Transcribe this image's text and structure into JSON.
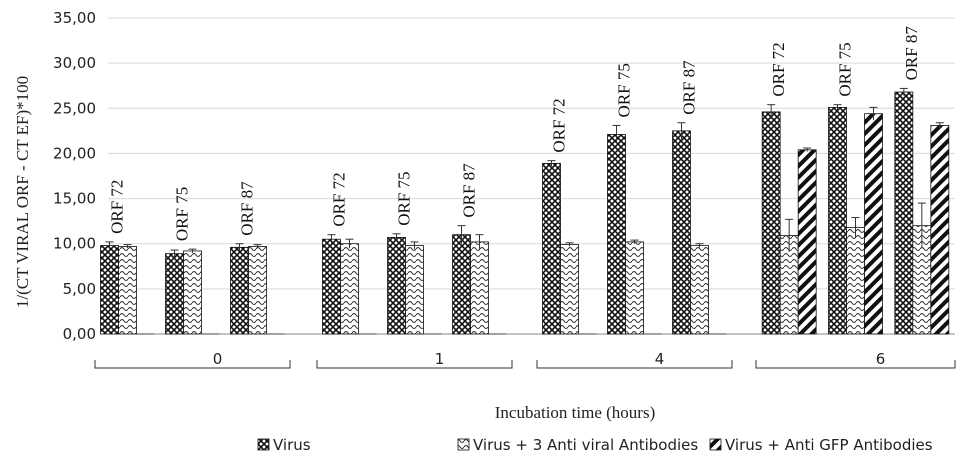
{
  "chart_data": {
    "type": "bar",
    "ylabel": "1/(CT VIRAL ORF - CT EF)*100",
    "xlabel": "Incubation time (hours)",
    "ylim": [
      0,
      35
    ],
    "y_ticks": [
      "0,00",
      "5,00",
      "10,00",
      "15,00",
      "20,00",
      "25,00",
      "30,00",
      "35,00"
    ],
    "grid": true,
    "legend_position": "bottom",
    "groups": [
      "0",
      "1",
      "4",
      "6"
    ],
    "subcategories": [
      "ORF 72",
      "ORF 75",
      "ORF 87"
    ],
    "series": [
      {
        "name": "Virus",
        "pattern": "crosshatch",
        "values": [
          [
            9.8,
            8.9,
            9.6
          ],
          [
            10.5,
            10.7,
            11.0
          ],
          [
            18.9,
            22.1,
            22.5
          ],
          [
            24.6,
            25.1,
            26.8
          ]
        ],
        "errors": [
          [
            0.4,
            0.4,
            0.4
          ],
          [
            0.5,
            0.4,
            1.0
          ],
          [
            0.3,
            1.0,
            0.9
          ],
          [
            0.8,
            0.3,
            0.4
          ]
        ]
      },
      {
        "name": "Virus + 3 Anti viral Antibodies",
        "pattern": "wave",
        "values": [
          [
            9.7,
            9.2,
            9.7
          ],
          [
            10.0,
            9.8,
            10.2
          ],
          [
            9.9,
            10.2,
            9.8
          ],
          [
            10.9,
            11.8,
            12.0
          ]
        ],
        "errors": [
          [
            0.2,
            0.2,
            0.2
          ],
          [
            0.5,
            0.4,
            0.8
          ],
          [
            0.2,
            0.2,
            0.2
          ],
          [
            1.8,
            1.1,
            2.5
          ]
        ]
      },
      {
        "name": "Virus + Anti GFP Antibodies",
        "pattern": "diagonal",
        "values": [
          [
            0,
            0,
            0
          ],
          [
            0,
            0,
            0
          ],
          [
            0,
            0,
            0
          ],
          [
            20.4,
            24.4,
            23.1
          ]
        ],
        "errors": [
          [
            0,
            0,
            0
          ],
          [
            0,
            0,
            0
          ],
          [
            0,
            0,
            0
          ],
          [
            0.2,
            0.7,
            0.3
          ]
        ]
      }
    ]
  }
}
